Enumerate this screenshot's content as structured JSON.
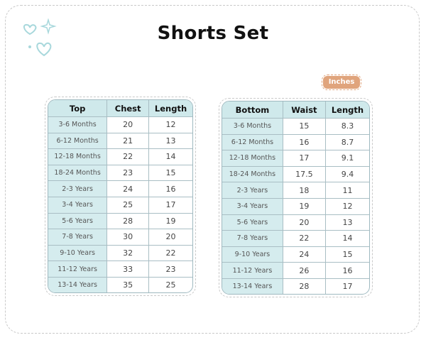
{
  "title": "Shorts Set",
  "unit_badge": "Inches",
  "colors": {
    "teal": "#cfe9eb",
    "badge": "#e0a47c",
    "doodle": "#a8d8dc"
  },
  "tables": [
    {
      "headers": [
        "Top",
        "Chest",
        "Length"
      ],
      "rows": [
        [
          "3-6 Months",
          "20",
          "12"
        ],
        [
          "6-12 Months",
          "21",
          "13"
        ],
        [
          "12-18 Months",
          "22",
          "14"
        ],
        [
          "18-24 Months",
          "23",
          "15"
        ],
        [
          "2-3 Years",
          "24",
          "16"
        ],
        [
          "3-4 Years",
          "25",
          "17"
        ],
        [
          "5-6 Years",
          "28",
          "19"
        ],
        [
          "7-8 Years",
          "30",
          "20"
        ],
        [
          "9-10 Years",
          "32",
          "22"
        ],
        [
          "11-12 Years",
          "33",
          "23"
        ],
        [
          "13-14 Years",
          "35",
          "25"
        ]
      ]
    },
    {
      "headers": [
        "Bottom",
        "Waist",
        "Length"
      ],
      "rows": [
        [
          "3-6 Months",
          "15",
          "8.3"
        ],
        [
          "6-12 Months",
          "16",
          "8.7"
        ],
        [
          "12-18 Months",
          "17",
          "9.1"
        ],
        [
          "18-24 Months",
          "17.5",
          "9.4"
        ],
        [
          "2-3 Years",
          "18",
          "11"
        ],
        [
          "3-4 Years",
          "19",
          "12"
        ],
        [
          "5-6 Years",
          "20",
          "13"
        ],
        [
          "7-8 Years",
          "22",
          "14"
        ],
        [
          "9-10 Years",
          "24",
          "15"
        ],
        [
          "11-12 Years",
          "26",
          "16"
        ],
        [
          "13-14 Years",
          "28",
          "17"
        ]
      ]
    }
  ]
}
